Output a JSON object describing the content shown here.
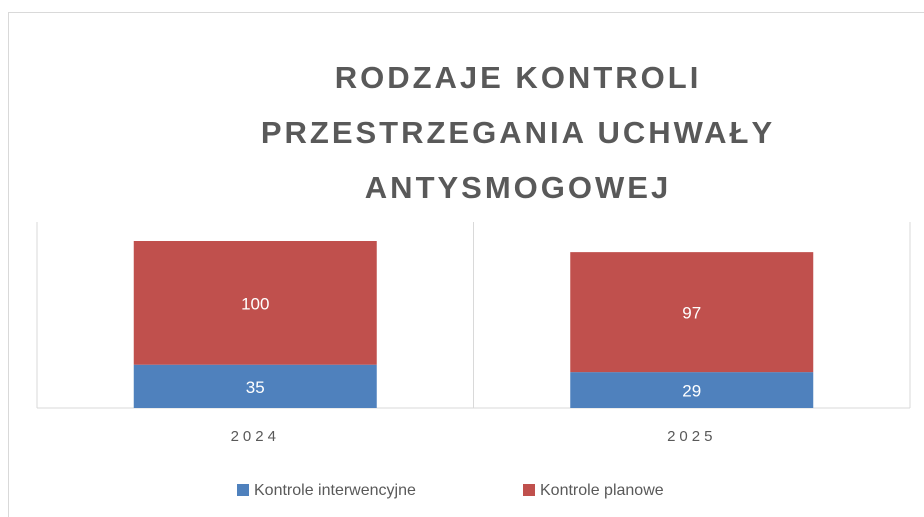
{
  "chart_data": {
    "type": "stacked_bar",
    "title": "RODZAJE KONTROLI PRZESTRZEGANIA UCHWAŁY ANTYSMOGOWEJ",
    "categories": [
      "2024",
      "2025"
    ],
    "series": [
      {
        "name": "Kontrole interwencyjne",
        "color": "#4f81bd",
        "values": [
          35,
          29
        ]
      },
      {
        "name": "Kontrole planowe",
        "color": "#c0504d",
        "values": [
          100,
          97
        ]
      }
    ],
    "legend": "bottom"
  }
}
